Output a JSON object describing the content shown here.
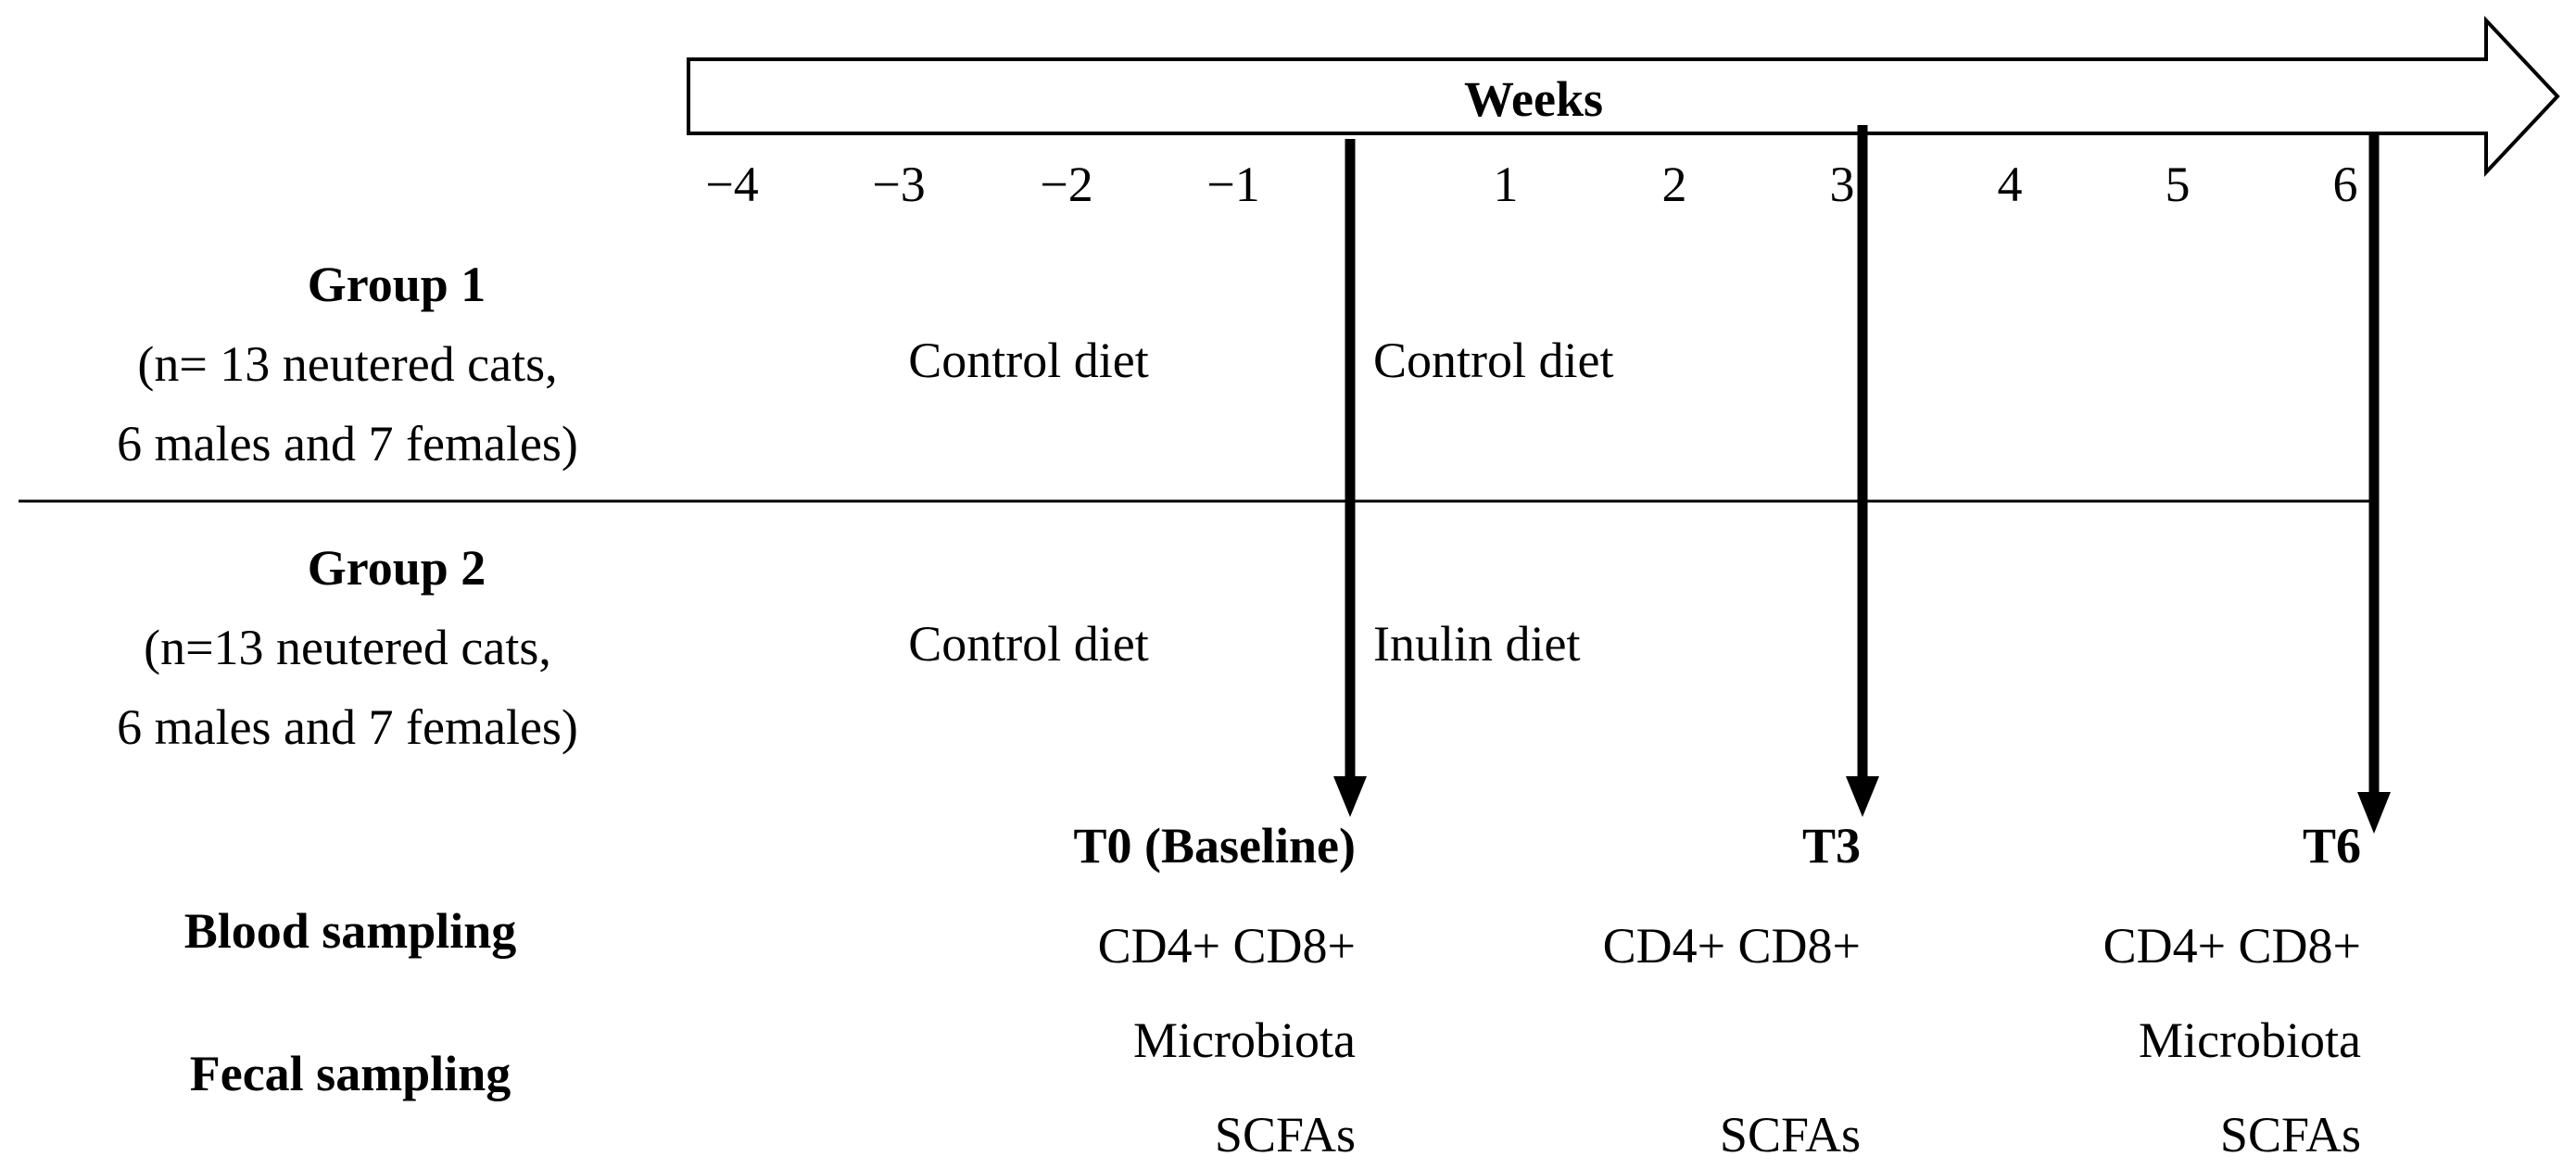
{
  "axis": {
    "title": "Weeks",
    "ticks": [
      "−4",
      "−3",
      "−2",
      "−1",
      "1",
      "2",
      "3",
      "4",
      "5",
      "6"
    ]
  },
  "groups": [
    {
      "name": "Group 1",
      "desc_line1": "(n= 13 neutered cats,",
      "desc_line2": "6 males and 7 females)",
      "pre_diet": "Control diet",
      "post_diet": "Control diet"
    },
    {
      "name": "Group 2",
      "desc_line1": "(n=13 neutered cats,",
      "desc_line2": "6 males and 7 females)",
      "pre_diet": "Control diet",
      "post_diet": "Inulin diet"
    }
  ],
  "timepoints": [
    {
      "label": "T0 (Baseline)",
      "week": 0,
      "blood": "CD4+ CD8+",
      "fecal_microbiota": "Microbiota",
      "fecal_scfa": "SCFAs"
    },
    {
      "label": "T3",
      "week": 3,
      "blood": "CD4+ CD8+",
      "fecal_microbiota": "",
      "fecal_scfa": "SCFAs"
    },
    {
      "label": "T6",
      "week": 6,
      "blood": "CD4+ CD8+",
      "fecal_microbiota": "Microbiota",
      "fecal_scfa": "SCFAs"
    }
  ],
  "sampling": {
    "blood_label": "Blood sampling",
    "fecal_label": "Fecal sampling"
  },
  "colors": {
    "line": "#000000",
    "background": "#ffffff"
  }
}
